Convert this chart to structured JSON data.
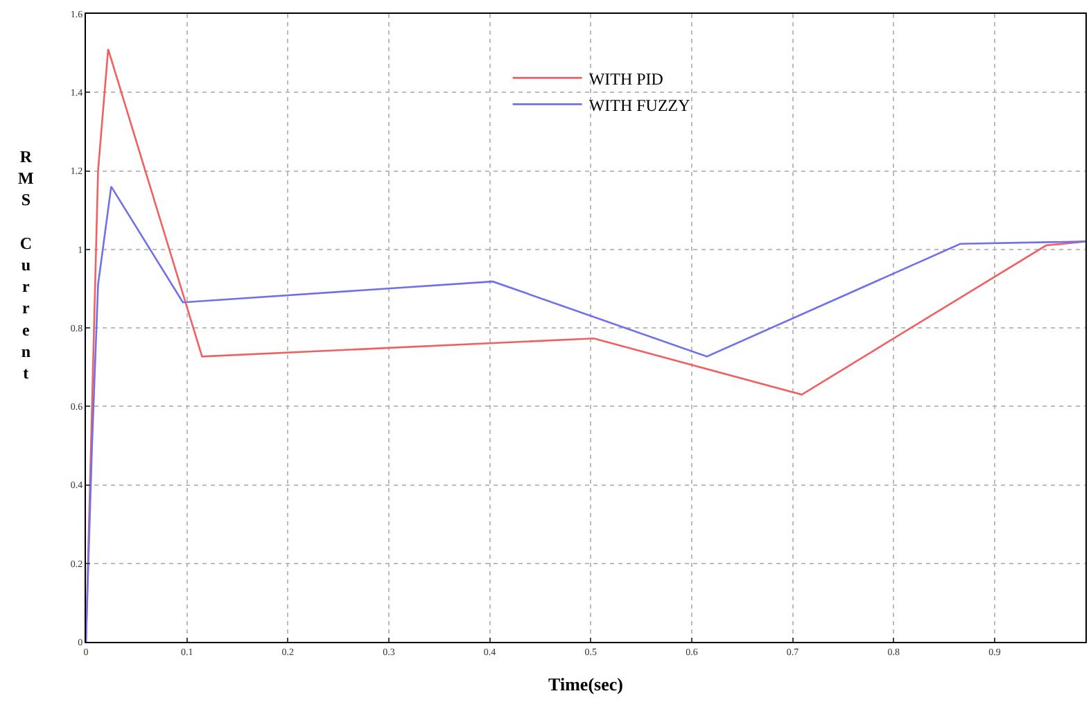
{
  "chart_data": {
    "type": "line",
    "xlabel": "Time(sec)",
    "ylabel": "RMS Current",
    "xlim": [
      0,
      0.99
    ],
    "xticks": [
      0,
      0.1,
      0.2,
      0.3,
      0.4,
      0.5,
      0.6,
      0.7,
      0.8,
      0.9
    ],
    "ylim": [
      0,
      1.6
    ],
    "yticks": [
      0,
      0.2,
      0.4,
      0.6,
      0.8,
      1,
      1.2,
      1.4,
      1.6
    ],
    "grid": true,
    "legend": "top",
    "line_style": "solid",
    "marker": "none",
    "series": [
      {
        "name": "WITH PID",
        "color": "#f06060",
        "x": [
          0,
          0.004,
          0.012,
          0.022,
          0.115,
          0.503,
          0.709,
          0.951,
          0.99
        ],
        "values": [
          0,
          0.4,
          1.2,
          1.51,
          0.727,
          0.773,
          0.63,
          1.01,
          1.02
        ]
      },
      {
        "name": "WITH FUZZY",
        "color": "#7070e8",
        "x": [
          0,
          0.006,
          0.012,
          0.025,
          0.096,
          0.403,
          0.615,
          0.866,
          0.99
        ],
        "values": [
          0,
          0.5,
          0.91,
          1.16,
          0.865,
          0.918,
          0.727,
          1.014,
          1.02
        ]
      }
    ]
  }
}
